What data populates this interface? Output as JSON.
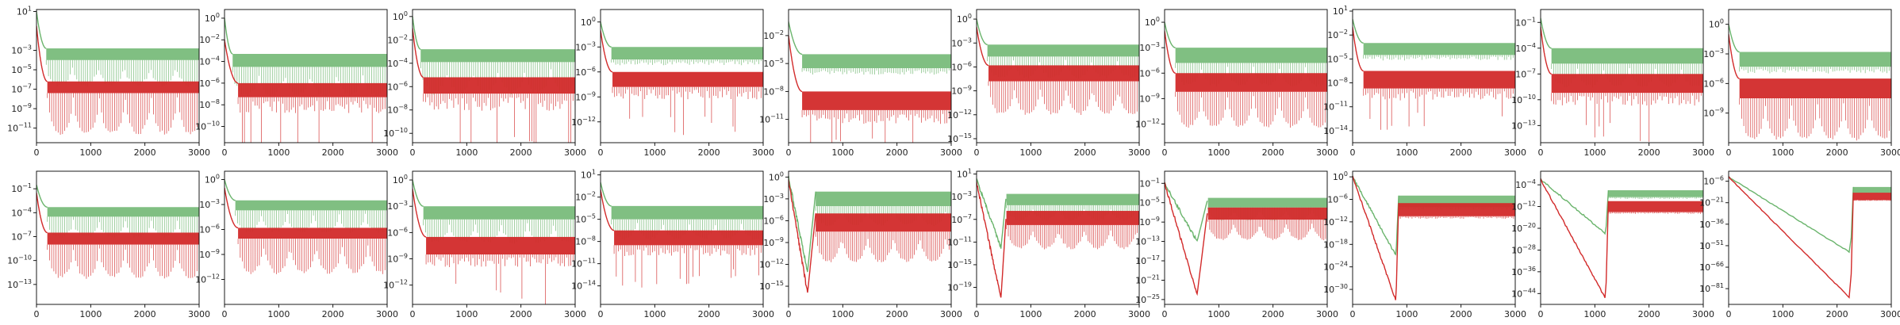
{
  "colors": {
    "green": "#6ab46c",
    "red": "#d22a2a",
    "axis": "#000000"
  },
  "chart_data": [
    {
      "type": "line",
      "row": 0,
      "col": 0,
      "scale_y": "log",
      "xlim": [
        0,
        3000
      ],
      "xticks": [
        0,
        1000,
        2000,
        3000
      ],
      "ylim_exp": [
        -12.5,
        1.2
      ],
      "yticks_exp": [
        1,
        -3,
        -5,
        -7,
        -9,
        -11
      ],
      "series": [
        {
          "color": "green",
          "start_exp": 1,
          "knee_x": 180,
          "plateau_exp": -2.8,
          "band": 1.2,
          "pattern": "lobes"
        },
        {
          "color": "red",
          "start_exp": -0.5,
          "knee_x": 200,
          "plateau_exp": -6.2,
          "band": 1.2,
          "pattern": "lobes"
        }
      ]
    },
    {
      "type": "line",
      "row": 0,
      "col": 1,
      "scale_y": "log",
      "xlim": [
        0,
        3000
      ],
      "xticks": [
        0,
        1000,
        2000,
        3000
      ],
      "ylim_exp": [
        -11.5,
        0.8
      ],
      "yticks_exp": [
        0,
        -2,
        -4,
        -6,
        -8,
        -10
      ],
      "series": [
        {
          "color": "green",
          "start_exp": 0,
          "knee_x": 150,
          "plateau_exp": -3.3,
          "band": 1.2,
          "pattern": "lobes"
        },
        {
          "color": "red",
          "start_exp": -2,
          "knee_x": 250,
          "plateau_exp": -6.0,
          "band": 1.3,
          "pattern": "spikes"
        }
      ]
    },
    {
      "type": "line",
      "row": 0,
      "col": 2,
      "scale_y": "log",
      "xlim": [
        0,
        3000
      ],
      "xticks": [
        0,
        1000,
        2000,
        3000
      ],
      "ylim_exp": [
        -10.8,
        0.6
      ],
      "yticks_exp": [
        0,
        -2,
        -4,
        -6,
        -8,
        -10
      ],
      "series": [
        {
          "color": "green",
          "start_exp": 0,
          "knee_x": 150,
          "plateau_exp": -2.8,
          "band": 1.1,
          "pattern": "lobes"
        },
        {
          "color": "red",
          "start_exp": -1,
          "knee_x": 200,
          "plateau_exp": -5.2,
          "band": 1.4,
          "pattern": "spikes"
        }
      ]
    },
    {
      "type": "line",
      "row": 0,
      "col": 3,
      "scale_y": "log",
      "xlim": [
        0,
        3000
      ],
      "xticks": [
        0,
        1000,
        2000,
        3000
      ],
      "ylim_exp": [
        -14.5,
        1.5
      ],
      "yticks_exp": [
        0,
        -3,
        -6,
        -9,
        -12
      ],
      "series": [
        {
          "color": "green",
          "start_exp": 0,
          "knee_x": 200,
          "plateau_exp": -3.0,
          "band": 1.5,
          "pattern": "flat"
        },
        {
          "color": "red",
          "start_exp": -1,
          "knee_x": 220,
          "plateau_exp": -6.0,
          "band": 1.8,
          "pattern": "spikes"
        }
      ]
    },
    {
      "type": "line",
      "row": 0,
      "col": 4,
      "scale_y": "log",
      "xlim": [
        0,
        3000
      ],
      "xticks": [
        0,
        1000,
        2000,
        3000
      ],
      "ylim_exp": [
        -13.5,
        0.8
      ],
      "yticks_exp": [
        -2,
        -5,
        -8,
        -11
      ],
      "series": [
        {
          "color": "green",
          "start_exp": -0.5,
          "knee_x": 250,
          "plateau_exp": -4.0,
          "band": 1.5,
          "pattern": "flat"
        },
        {
          "color": "red",
          "start_exp": -2,
          "knee_x": 250,
          "plateau_exp": -8.0,
          "band": 2.0,
          "pattern": "spikes"
        }
      ]
    },
    {
      "type": "line",
      "row": 0,
      "col": 5,
      "scale_y": "log",
      "xlim": [
        0,
        3000
      ],
      "xticks": [
        0,
        1000,
        2000,
        3000
      ],
      "ylim_exp": [
        -15.5,
        1.2
      ],
      "yticks_exp": [
        0,
        -3,
        -6,
        -9,
        -12,
        -15
      ],
      "series": [
        {
          "color": "green",
          "start_exp": 0,
          "knee_x": 200,
          "plateau_exp": -3.2,
          "band": 1.5,
          "pattern": "lobes"
        },
        {
          "color": "red",
          "start_exp": -1,
          "knee_x": 220,
          "plateau_exp": -5.8,
          "band": 2.0,
          "pattern": "lobes"
        }
      ]
    },
    {
      "type": "line",
      "row": 0,
      "col": 6,
      "scale_y": "log",
      "xlim": [
        0,
        3000
      ],
      "xticks": [
        0,
        1000,
        2000,
        3000
      ],
      "ylim_exp": [
        -14.2,
        1.5
      ],
      "yticks_exp": [
        0,
        -3,
        -6,
        -9,
        -12
      ],
      "series": [
        {
          "color": "green",
          "start_exp": 0,
          "knee_x": 200,
          "plateau_exp": -3.0,
          "band": 1.8,
          "pattern": "lobes"
        },
        {
          "color": "red",
          "start_exp": -1,
          "knee_x": 200,
          "plateau_exp": -6.0,
          "band": 2.2,
          "pattern": "lobes"
        }
      ]
    },
    {
      "type": "line",
      "row": 0,
      "col": 7,
      "scale_y": "log",
      "xlim": [
        0,
        3000
      ],
      "xticks": [
        0,
        1000,
        2000,
        3000
      ],
      "ylim_exp": [
        -15.5,
        1.2
      ],
      "yticks_exp": [
        1,
        -2,
        -5,
        -8,
        -11,
        -14
      ],
      "series": [
        {
          "color": "green",
          "start_exp": 0,
          "knee_x": 200,
          "plateau_exp": -3.0,
          "band": 1.5,
          "pattern": "flat"
        },
        {
          "color": "red",
          "start_exp": -1,
          "knee_x": 200,
          "plateau_exp": -6.5,
          "band": 2.2,
          "pattern": "spikes"
        }
      ]
    },
    {
      "type": "line",
      "row": 0,
      "col": 8,
      "scale_y": "log",
      "xlim": [
        0,
        3000
      ],
      "xticks": [
        0,
        1000,
        2000,
        3000
      ],
      "ylim_exp": [
        -15.0,
        0.5
      ],
      "yticks_exp": [
        -1,
        -4,
        -7,
        -10,
        -13
      ],
      "series": [
        {
          "color": "green",
          "start_exp": -0.5,
          "knee_x": 200,
          "plateau_exp": -4.0,
          "band": 1.8,
          "pattern": "lobes"
        },
        {
          "color": "red",
          "start_exp": -1.5,
          "knee_x": 200,
          "plateau_exp": -7.0,
          "band": 2.2,
          "pattern": "spikes"
        }
      ]
    },
    {
      "type": "line",
      "row": 0,
      "col": 9,
      "scale_y": "log",
      "xlim": [
        0,
        3000
      ],
      "xticks": [
        0,
        1000,
        2000,
        3000
      ],
      "ylim_exp": [
        -12.0,
        1.5
      ],
      "yticks_exp": [
        0,
        -3,
        -6,
        -9
      ],
      "series": [
        {
          "color": "green",
          "start_exp": 0,
          "knee_x": 200,
          "plateau_exp": -2.8,
          "band": 1.5,
          "pattern": "flat"
        },
        {
          "color": "red",
          "start_exp": -1,
          "knee_x": 200,
          "plateau_exp": -5.5,
          "band": 2.0,
          "pattern": "lobes"
        }
      ]
    },
    {
      "type": "line",
      "row": 1,
      "col": 0,
      "scale_y": "log",
      "xlim": [
        0,
        3000
      ],
      "xticks": [
        0,
        1000,
        2000,
        3000
      ],
      "ylim_exp": [
        -15.5,
        1.2
      ],
      "yticks_exp": [
        -1,
        -4,
        -7,
        -10,
        -13
      ],
      "series": [
        {
          "color": "green",
          "start_exp": -0.5,
          "knee_x": 200,
          "plateau_exp": -3.3,
          "band": 1.2,
          "pattern": "lobes"
        },
        {
          "color": "red",
          "start_exp": -1.5,
          "knee_x": 200,
          "plateau_exp": -6.5,
          "band": 1.5,
          "pattern": "lobes"
        }
      ]
    },
    {
      "type": "line",
      "row": 1,
      "col": 1,
      "scale_y": "log",
      "xlim": [
        0,
        3000
      ],
      "xticks": [
        0,
        1000,
        2000,
        3000
      ],
      "ylim_exp": [
        -15.0,
        1.0
      ],
      "yticks_exp": [
        0,
        -3,
        -6,
        -9,
        -12
      ],
      "series": [
        {
          "color": "green",
          "start_exp": 0,
          "knee_x": 200,
          "plateau_exp": -2.5,
          "band": 1.2,
          "pattern": "lobes"
        },
        {
          "color": "red",
          "start_exp": -1,
          "knee_x": 250,
          "plateau_exp": -5.8,
          "band": 1.3,
          "pattern": "lobes"
        }
      ]
    },
    {
      "type": "line",
      "row": 1,
      "col": 2,
      "scale_y": "log",
      "xlim": [
        0,
        3000
      ],
      "xticks": [
        0,
        1000,
        2000,
        3000
      ],
      "ylim_exp": [
        -14.2,
        1.0
      ],
      "yticks_exp": [
        0,
        -3,
        -6,
        -9,
        -12
      ],
      "series": [
        {
          "color": "green",
          "start_exp": 0,
          "knee_x": 200,
          "plateau_exp": -3.0,
          "band": 1.5,
          "pattern": "lobes"
        },
        {
          "color": "red",
          "start_exp": -1,
          "knee_x": 250,
          "plateau_exp": -6.5,
          "band": 2.0,
          "pattern": "spikes"
        }
      ]
    },
    {
      "type": "line",
      "row": 1,
      "col": 3,
      "scale_y": "log",
      "xlim": [
        0,
        3000
      ],
      "xticks": [
        0,
        1000,
        2000,
        3000
      ],
      "ylim_exp": [
        -16.5,
        1.5
      ],
      "yticks_exp": [
        1,
        -2,
        -5,
        -8,
        -11,
        -14
      ],
      "series": [
        {
          "color": "green",
          "start_exp": 0,
          "knee_x": 200,
          "plateau_exp": -3.2,
          "band": 1.8,
          "pattern": "lobes"
        },
        {
          "color": "red",
          "start_exp": -1,
          "knee_x": 250,
          "plateau_exp": -6.5,
          "band": 2.0,
          "pattern": "spikes"
        }
      ]
    },
    {
      "type": "line",
      "row": 1,
      "col": 4,
      "scale_y": "log",
      "xlim": [
        0,
        3000
      ],
      "xticks": [
        0,
        1000,
        2000,
        3000
      ],
      "ylim_exp": [
        -17.5,
        0.8
      ],
      "yticks_exp": [
        0,
        -3,
        -6,
        -9,
        -12,
        -15
      ],
      "series": [
        {
          "color": "green",
          "start_exp": 0,
          "knee_x": 350,
          "plateau_exp": -2.0,
          "band": 2.0,
          "pattern": "lobes",
          "reset_x": 500,
          "dip_exp": -13.0
        },
        {
          "color": "red",
          "start_exp": -0.5,
          "knee_x": 350,
          "plateau_exp": -5.0,
          "band": 2.5,
          "pattern": "lobes",
          "reset_x": 500,
          "dip_exp": -16.0
        }
      ]
    },
    {
      "type": "line",
      "row": 1,
      "col": 5,
      "scale_y": "log",
      "xlim": [
        0,
        3000
      ],
      "xticks": [
        0,
        1000,
        2000,
        3000
      ],
      "ylim_exp": [
        -22.0,
        1.5
      ],
      "yticks_exp": [
        1,
        -3,
        -7,
        -11,
        -15,
        -19
      ],
      "series": [
        {
          "color": "green",
          "start_exp": 0,
          "knee_x": 450,
          "plateau_exp": -2.5,
          "band": 2.0,
          "pattern": "lobes",
          "reset_x": 550,
          "dip_exp": -12.0
        },
        {
          "color": "red",
          "start_exp": -0.5,
          "knee_x": 450,
          "plateau_exp": -5.5,
          "band": 2.5,
          "pattern": "lobes",
          "reset_x": 550,
          "dip_exp": -21.0
        }
      ]
    },
    {
      "type": "line",
      "row": 1,
      "col": 6,
      "scale_y": "log",
      "xlim": [
        0,
        3000
      ],
      "xticks": [
        0,
        1000,
        2000,
        3000
      ],
      "ylim_exp": [
        -26.0,
        1.5
      ],
      "yticks_exp": [
        -1,
        -5,
        -9,
        -13,
        -17,
        -21,
        -25
      ],
      "series": [
        {
          "color": "green",
          "start_exp": -1,
          "knee_x": 600,
          "plateau_exp": -4.0,
          "band": 2.0,
          "pattern": "lobes",
          "reset_x": 800,
          "dip_exp": -13.0
        },
        {
          "color": "red",
          "start_exp": -1,
          "knee_x": 600,
          "plateau_exp": -6.0,
          "band": 2.5,
          "pattern": "lobes",
          "reset_x": 800,
          "dip_exp": -24.0
        }
      ]
    },
    {
      "type": "line",
      "row": 1,
      "col": 7,
      "scale_y": "log",
      "xlim": [
        0,
        3000
      ],
      "xticks": [
        0,
        1000,
        2000,
        3000
      ],
      "ylim_exp": [
        -34.0,
        1.5
      ],
      "yticks_exp": [
        0,
        -6,
        -12,
        -18,
        -24,
        -30
      ],
      "series": [
        {
          "color": "green",
          "start_exp": 0,
          "knee_x": 800,
          "plateau_exp": -5.0,
          "band": 3.0,
          "pattern": "flat",
          "reset_x": 850,
          "dip_exp": -21.0
        },
        {
          "color": "red",
          "start_exp": 0,
          "knee_x": 800,
          "plateau_exp": -7.0,
          "band": 3.5,
          "pattern": "flat",
          "reset_x": 850,
          "dip_exp": -33.0
        }
      ]
    },
    {
      "type": "line",
      "row": 1,
      "col": 8,
      "scale_y": "log",
      "xlim": [
        0,
        3000
      ],
      "xticks": [
        0,
        1000,
        2000,
        3000
      ],
      "ylim_exp": [
        -48.0,
        1.0
      ],
      "yticks_exp": [
        -4,
        -12,
        -20,
        -28,
        -36,
        -44
      ],
      "series": [
        {
          "color": "green",
          "start_exp": -2,
          "knee_x": 1200,
          "plateau_exp": -6.0,
          "band": 2.5,
          "pattern": "flat",
          "reset_x": 1250,
          "dip_exp": -22.0
        },
        {
          "color": "red",
          "start_exp": -2,
          "knee_x": 1200,
          "plateau_exp": -10.0,
          "band": 4.0,
          "pattern": "flat",
          "reset_x": 1250,
          "dip_exp": -46.0
        }
      ]
    },
    {
      "type": "line",
      "row": 1,
      "col": 9,
      "scale_y": "log",
      "xlim": [
        0,
        3000
      ],
      "xticks": [
        0,
        1000,
        2000,
        3000
      ],
      "ylim_exp": [
        -92.0,
        1.0
      ],
      "yticks_exp": [
        -6,
        -21,
        -36,
        -51,
        -66,
        -81
      ],
      "series": [
        {
          "color": "green",
          "start_exp": -3,
          "knee_x": 2250,
          "plateau_exp": -10.0,
          "band": 4.0,
          "pattern": "flat",
          "reset_x": 2300,
          "dip_exp": -56.0
        },
        {
          "color": "red",
          "start_exp": -3,
          "knee_x": 2250,
          "plateau_exp": -14.0,
          "band": 5.0,
          "pattern": "flat",
          "reset_x": 2300,
          "dip_exp": -88.0
        }
      ]
    }
  ]
}
